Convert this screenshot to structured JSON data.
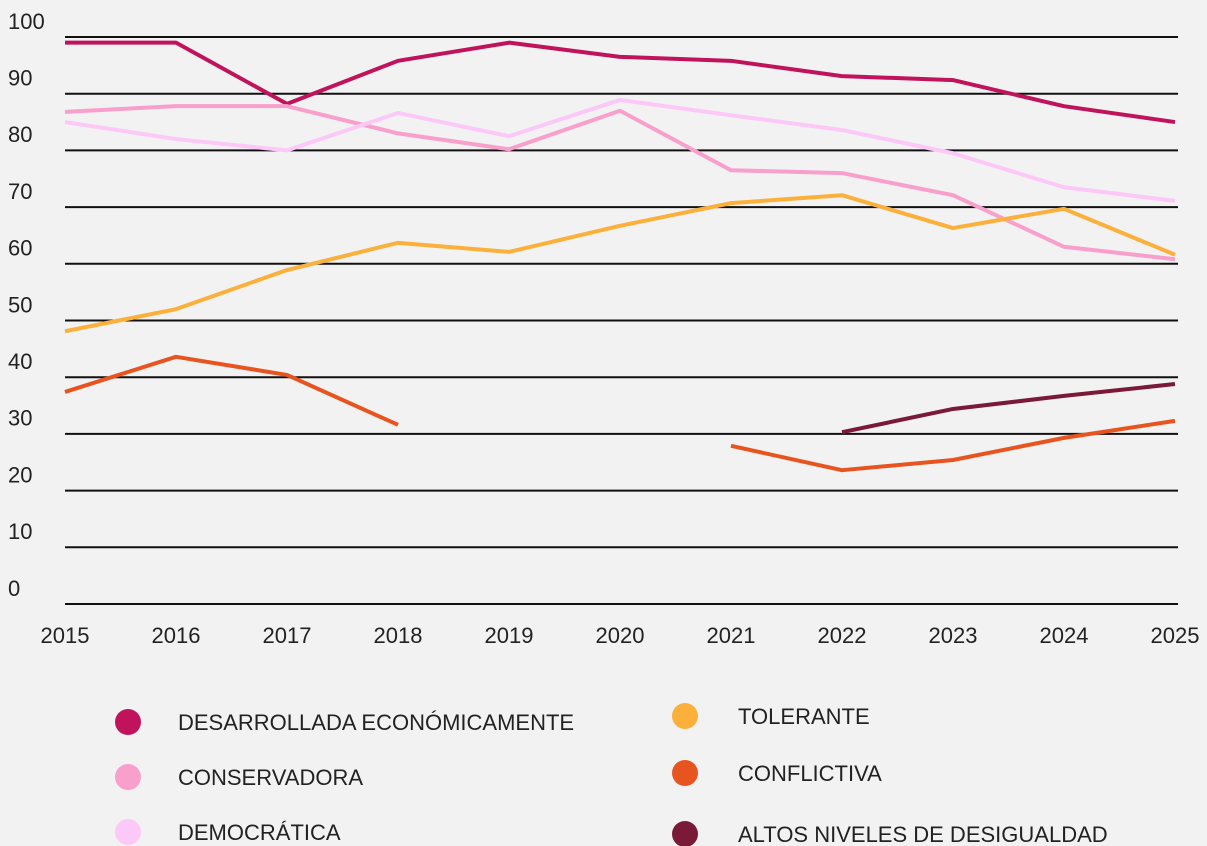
{
  "chart_data": {
    "type": "line",
    "x": [
      2015,
      2016,
      2017,
      2018,
      2019,
      2020,
      2021,
      2022,
      2023,
      2024,
      2025
    ],
    "xlim": [
      2015,
      2025
    ],
    "ylim": [
      0,
      100
    ],
    "yticks": [
      0,
      10,
      20,
      30,
      40,
      50,
      60,
      70,
      80,
      90,
      100
    ],
    "grid": true,
    "series": [
      {
        "name": "DESARROLLADA ECONÓMICAMENTE",
        "color": "#c0135c",
        "values": [
          99,
          99,
          88.2,
          95.8,
          99,
          96.5,
          95.8,
          93.1,
          92.4,
          87.8,
          85
        ]
      },
      {
        "name": "CONSERVADORA",
        "color": "#f99fcb",
        "values": [
          86.8,
          87.8,
          87.8,
          83,
          80.2,
          87,
          76.5,
          76,
          72.1,
          63,
          60.8
        ]
      },
      {
        "name": "DEMOCRÁTICA",
        "color": "#fcc8f8",
        "values": [
          85,
          82,
          80,
          86.6,
          82.5,
          88.9,
          86.2,
          83.6,
          79.5,
          73.5,
          71.1
        ]
      },
      {
        "name": "TOLERANTE",
        "color": "#fbb03b",
        "values": [
          48.1,
          52,
          58.9,
          63.7,
          62.1,
          66.7,
          70.7,
          72.1,
          66.3,
          69.7,
          61.6
        ]
      },
      {
        "name": "CONFLICTIVA",
        "color": "#e8541f",
        "values": [
          37.4,
          43.6,
          40.4,
          31.6,
          null,
          null,
          27.9,
          23.6,
          25.4,
          29.3,
          32.3
        ]
      },
      {
        "name": "ALTOS NIVELES DE DESIGUALDAD",
        "color": "#7b1a38",
        "values": [
          null,
          null,
          null,
          null,
          null,
          null,
          null,
          30.3,
          34.4,
          36.7,
          38.8
        ]
      }
    ]
  }
}
